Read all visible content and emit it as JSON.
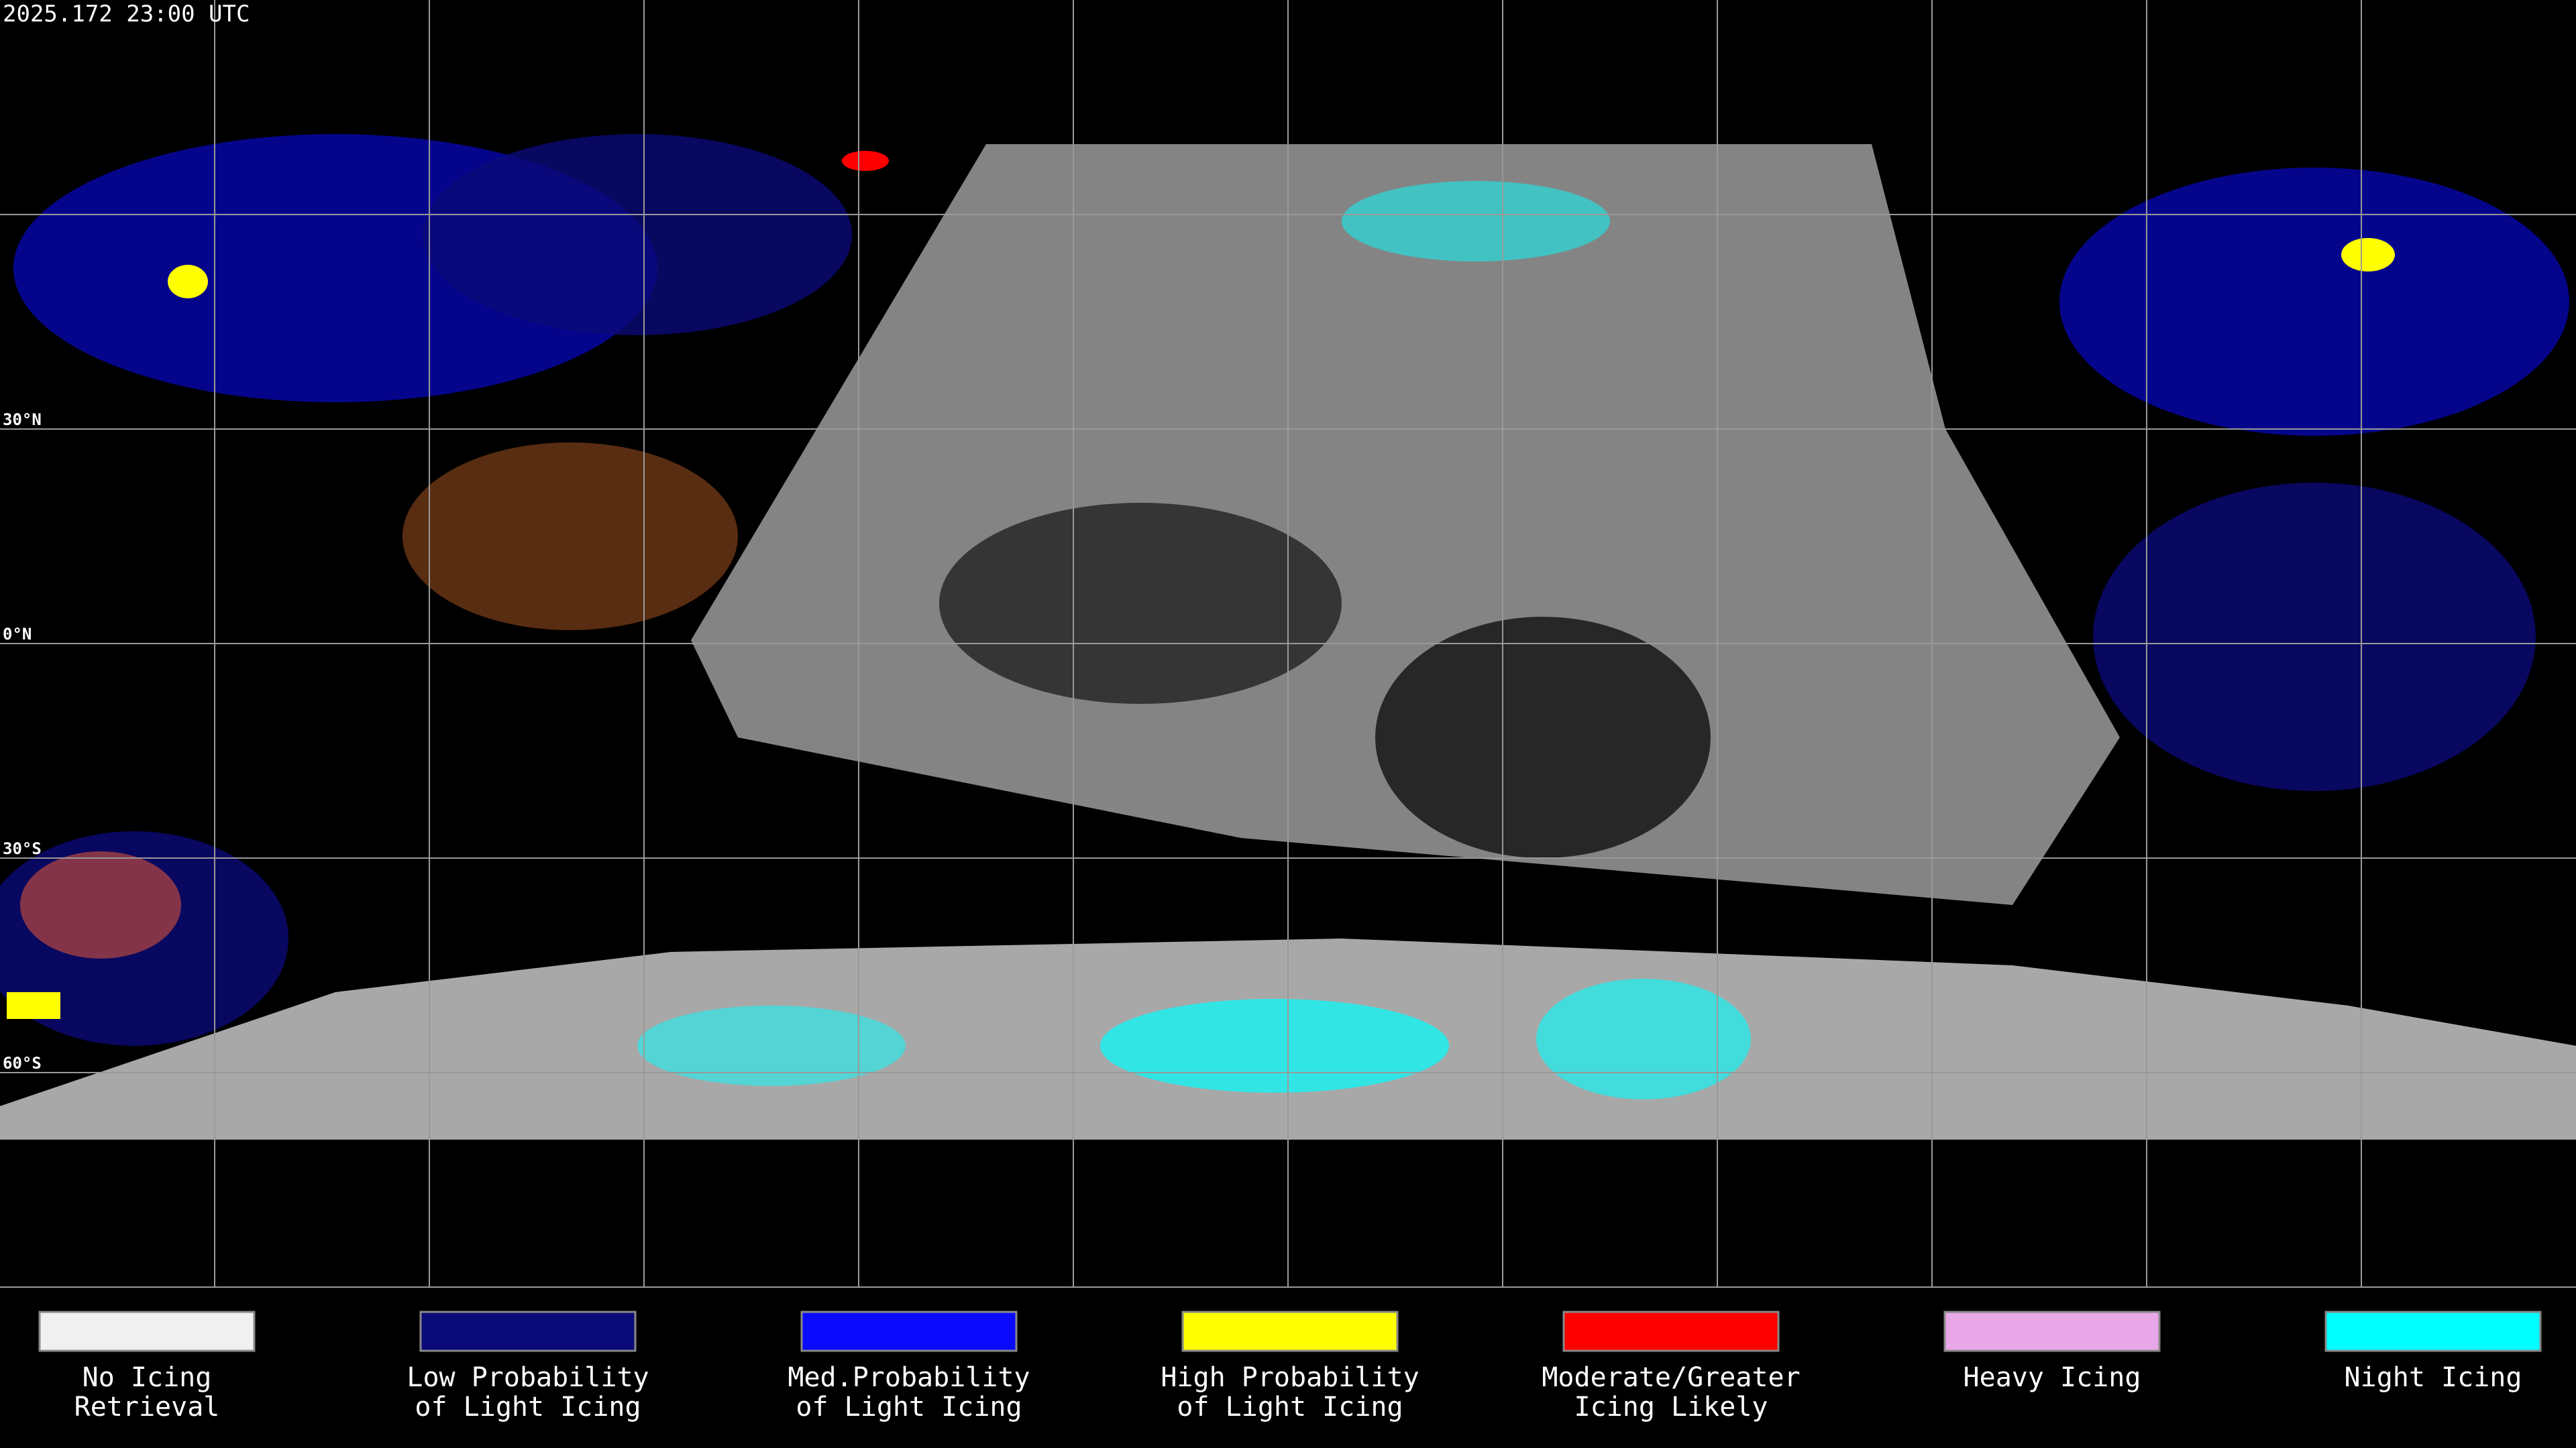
{
  "header": {
    "timestamp": "2025.172 23:00 UTC"
  },
  "map": {
    "latitude_labels": [
      "30°N",
      "0°N",
      "30°S",
      "60°S"
    ]
  },
  "legend": {
    "items": [
      {
        "lines": [
          "No Icing",
          "Retrieval"
        ],
        "color": "#f0f0f0"
      },
      {
        "lines": [
          "Low Probability",
          "of Light Icing"
        ],
        "color": "#0a0a78"
      },
      {
        "lines": [
          "Med.Probability",
          "of Light Icing"
        ],
        "color": "#0a0aff"
      },
      {
        "lines": [
          "High Probability",
          "of Light Icing"
        ],
        "color": "#ffff00"
      },
      {
        "lines": [
          "Moderate/Greater",
          "Icing Likely"
        ],
        "color": "#ff0000"
      },
      {
        "lines": [
          "Heavy Icing"
        ],
        "color": "#e8a8e8"
      },
      {
        "lines": [
          "Night Icing"
        ],
        "color": "#00ffff"
      }
    ]
  }
}
